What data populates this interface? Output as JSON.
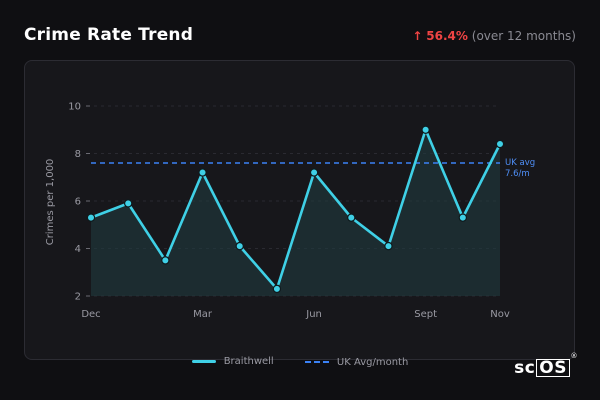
{
  "header": {
    "title": "Crime Rate Trend",
    "trend_arrow": "↑",
    "trend_value": "56.4%",
    "trend_note": "(over 12 months)"
  },
  "reference": {
    "label_line1": "UK avg",
    "label_line2": "7.6/m"
  },
  "legend": {
    "series_label": "Braithwell",
    "reference_label": "UK Avg/month"
  },
  "logo": {
    "text": "sc",
    "boxed": "OS",
    "mark": "®"
  },
  "colors": {
    "line": "#3fd0e6",
    "area": "#1f3a40",
    "reference": "#3b82f6",
    "trend_up": "#ef4444"
  },
  "chart_data": {
    "type": "line",
    "ylabel": "Crimes per 1,000",
    "ylim": [
      2,
      10
    ],
    "yticks": [
      2,
      4,
      6,
      8,
      10
    ],
    "x_tick_labels": [
      "Dec",
      "Mar",
      "Jun",
      "Sept",
      "Nov"
    ],
    "x_tick_index": [
      0,
      3,
      6,
      9,
      11
    ],
    "series": [
      {
        "name": "Braithwell",
        "values": [
          5.3,
          5.9,
          3.5,
          7.2,
          4.1,
          2.3,
          7.2,
          5.3,
          4.1,
          9.0,
          5.3,
          8.4
        ]
      }
    ],
    "reference_line": {
      "name": "UK Avg/month",
      "value": 7.6
    },
    "grid": true,
    "legend_position": "bottom"
  }
}
